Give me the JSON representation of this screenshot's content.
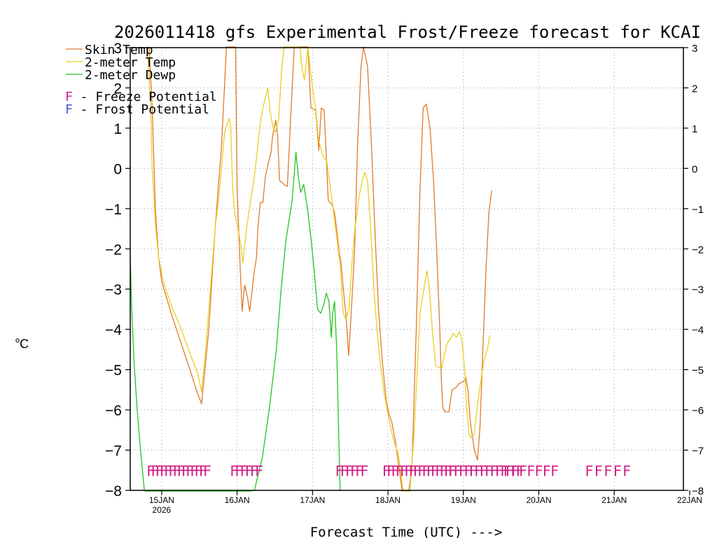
{
  "chart_data": {
    "type": "line",
    "title": "2026011418 gfs Experimental Frost/Freeze forecast for KCAI",
    "xlabel": "Forecast Time (UTC) --->",
    "ylabel": "°C",
    "ylabel_super": "o",
    "ylabel_unit": "C",
    "ylim": [
      -8,
      3
    ],
    "yticks": [
      3,
      2,
      1,
      0,
      -1,
      -2,
      -3,
      -4,
      -5,
      -6,
      -7,
      -8
    ],
    "xlim_hours": [
      -4,
      172
    ],
    "xticks": [
      {
        "label": "15JAN",
        "hour": 6
      },
      {
        "label": "16JAN",
        "hour": 30
      },
      {
        "label": "17JAN",
        "hour": 54
      },
      {
        "label": "18JAN",
        "hour": 78
      },
      {
        "label": "19JAN",
        "hour": 102
      },
      {
        "label": "20JAN",
        "hour": 126
      },
      {
        "label": "21JAN",
        "hour": 150
      },
      {
        "label": "22JAN",
        "hour": 174
      }
    ],
    "x_sublabel": {
      "label": "2026",
      "hour": 6
    },
    "grid": true,
    "legend": {
      "entries": [
        {
          "name": "Skin Temp",
          "color": "#e07a2a"
        },
        {
          "name": "2-meter Temp",
          "color": "#e8d020"
        },
        {
          "name": "2-meter Dewp",
          "color": "#22c41e"
        }
      ],
      "potential": [
        {
          "symbol": "F",
          "text": " - Freeze Potential",
          "color": "#d0208a"
        },
        {
          "symbol": "F",
          "text": " - Frost Potential",
          "color": "#4a52d8"
        }
      ]
    },
    "series": [
      {
        "name": "Skin Temp",
        "color": "#e07a2a",
        "points": [
          [
            2,
            3.2
          ],
          [
            3,
            1.5
          ],
          [
            4,
            -1
          ],
          [
            5,
            -2.2
          ],
          [
            6,
            -2.8
          ],
          [
            9,
            -3.6
          ],
          [
            12,
            -4.3
          ],
          [
            15,
            -5.0
          ],
          [
            17,
            -5.5
          ],
          [
            18.7,
            -5.85
          ],
          [
            21,
            -4.0
          ],
          [
            23,
            -1.5
          ],
          [
            25,
            0.5
          ],
          [
            26.6,
            3.2
          ],
          [
            29.5,
            3.2
          ],
          [
            30,
            -0.5
          ],
          [
            31,
            -2.5
          ],
          [
            31.6,
            -3.55
          ],
          [
            32.4,
            -2.9
          ],
          [
            33.3,
            -3.2
          ],
          [
            34,
            -3.55
          ],
          [
            35.4,
            -2.6
          ],
          [
            36.2,
            -2.2
          ],
          [
            36.6,
            -1.5
          ],
          [
            37.4,
            -0.85
          ],
          [
            38.2,
            -0.85
          ],
          [
            39,
            -0.2
          ],
          [
            40,
            0.15
          ],
          [
            40.8,
            0.4
          ],
          [
            41.3,
            0.8
          ],
          [
            42.3,
            1.2
          ],
          [
            42.9,
            0.8
          ],
          [
            43.5,
            -0.3
          ],
          [
            45,
            -0.4
          ],
          [
            46,
            -0.45
          ],
          [
            47.2,
            1.5
          ],
          [
            48.2,
            3.2
          ],
          [
            52.5,
            3.2
          ],
          [
            53.5,
            1.5
          ],
          [
            55,
            1.45
          ],
          [
            56,
            0.45
          ],
          [
            56.8,
            1.5
          ],
          [
            57.7,
            1.45
          ],
          [
            58.5,
            0.1
          ],
          [
            59,
            -0.8
          ],
          [
            60.2,
            -0.9
          ],
          [
            61,
            -1.1
          ],
          [
            61.8,
            -1.6
          ],
          [
            62.5,
            -2.1
          ],
          [
            63.1,
            -2.35
          ],
          [
            63.8,
            -3.0
          ],
          [
            64.6,
            -3.6
          ],
          [
            65.5,
            -4.65
          ],
          [
            66.3,
            -3.6
          ],
          [
            67.4,
            -2.0
          ],
          [
            68.3,
            0.5
          ],
          [
            69.4,
            2.5
          ],
          [
            70.2,
            3.05
          ],
          [
            71.5,
            2.55
          ],
          [
            72.8,
            0.5
          ],
          [
            74,
            -1.8
          ],
          [
            75,
            -3.5
          ],
          [
            76.2,
            -4.8
          ],
          [
            77.5,
            -5.8
          ],
          [
            78.3,
            -6.1
          ],
          [
            79.2,
            -6.3
          ],
          [
            80.4,
            -6.8
          ],
          [
            81.3,
            -7.3
          ],
          [
            82.5,
            -8.3
          ],
          [
            84.6,
            -8.3
          ],
          [
            85.6,
            -7.5
          ],
          [
            87,
            -4.0
          ],
          [
            88.2,
            -0.5
          ],
          [
            89.2,
            1.5
          ],
          [
            90.2,
            1.6
          ],
          [
            91.4,
            1.0
          ],
          [
            92.5,
            -0.3
          ],
          [
            93.5,
            -2.0
          ],
          [
            94.5,
            -4.0
          ],
          [
            95,
            -5.3
          ],
          [
            95.5,
            -5.95
          ],
          [
            96.2,
            -6.05
          ],
          [
            97.4,
            -6.05
          ],
          [
            98.4,
            -5.5
          ],
          [
            99.6,
            -5.45
          ],
          [
            100.6,
            -5.35
          ],
          [
            102,
            -5.3
          ],
          [
            102.8,
            -5.2
          ],
          [
            103.5,
            -5.55
          ],
          [
            104.2,
            -6.3
          ],
          [
            105.5,
            -7.0
          ],
          [
            106.5,
            -7.25
          ],
          [
            107.3,
            -6.4
          ],
          [
            108.2,
            -4.5
          ],
          [
            109.2,
            -2.5
          ],
          [
            110.1,
            -1.1
          ],
          [
            111,
            -0.55
          ]
        ]
      },
      {
        "name": "2-meter Temp",
        "color": "#e8d020",
        "points": [
          [
            1.5,
            3.2
          ],
          [
            2.5,
            1.5
          ],
          [
            3,
            0
          ],
          [
            4,
            -1.4
          ],
          [
            5,
            -2.2
          ],
          [
            6.5,
            -2.8
          ],
          [
            9,
            -3.4
          ],
          [
            12,
            -3.95
          ],
          [
            15,
            -4.6
          ],
          [
            17.5,
            -5.1
          ],
          [
            18.7,
            -5.55
          ],
          [
            20,
            -4.5
          ],
          [
            21.5,
            -3.0
          ],
          [
            23,
            -1.5
          ],
          [
            24.5,
            -0.5
          ],
          [
            26,
            0.9
          ],
          [
            27.5,
            1.25
          ],
          [
            28,
            1.0
          ],
          [
            28.6,
            -0.5
          ],
          [
            29.2,
            -1.1
          ],
          [
            30.3,
            -1.5
          ],
          [
            31.2,
            -1.9
          ],
          [
            31.8,
            -2.35
          ],
          [
            33,
            -1.5
          ],
          [
            34.3,
            -0.8
          ],
          [
            35.5,
            -0.2
          ],
          [
            36.5,
            0.5
          ],
          [
            37.5,
            1.2
          ],
          [
            38.5,
            1.6
          ],
          [
            39.8,
            2.0
          ],
          [
            40.5,
            1.4
          ],
          [
            41.5,
            1.0
          ],
          [
            42.2,
            0.9
          ],
          [
            43.2,
            1.2
          ],
          [
            44.2,
            2.5
          ],
          [
            45,
            3.2
          ],
          [
            50,
            3.2
          ],
          [
            50.6,
            2.5
          ],
          [
            51.4,
            2.2
          ],
          [
            52.5,
            3.2
          ],
          [
            54,
            2.0
          ],
          [
            55,
            1.5
          ],
          [
            55.8,
            0.8
          ],
          [
            56.6,
            0.5
          ],
          [
            57.6,
            0.25
          ],
          [
            58.5,
            0.2
          ],
          [
            59,
            -0.1
          ],
          [
            60.2,
            -0.8
          ],
          [
            61,
            -1.3
          ],
          [
            62,
            -1.9
          ],
          [
            62.8,
            -2.4
          ],
          [
            63.8,
            -3.6
          ],
          [
            64.6,
            -3.75
          ],
          [
            65.6,
            -3.5
          ],
          [
            66.5,
            -2.4
          ],
          [
            67.5,
            -1.5
          ],
          [
            68.8,
            -0.7
          ],
          [
            69.8,
            -0.3
          ],
          [
            70.6,
            -0.1
          ],
          [
            71.5,
            -0.3
          ],
          [
            72.5,
            -1.5
          ],
          [
            73.5,
            -3.0
          ],
          [
            74.5,
            -4.0
          ],
          [
            75.5,
            -4.8
          ],
          [
            76.8,
            -5.6
          ],
          [
            78,
            -6.1
          ],
          [
            79,
            -6.5
          ],
          [
            80,
            -6.8
          ],
          [
            81.3,
            -7.1
          ],
          [
            82,
            -7.5
          ],
          [
            82.8,
            -8.3
          ],
          [
            85,
            -8.3
          ],
          [
            86.3,
            -6.6
          ],
          [
            87.2,
            -5.2
          ],
          [
            88.2,
            -3.6
          ],
          [
            89.4,
            -3.0
          ],
          [
            90.4,
            -2.55
          ],
          [
            91.2,
            -3.0
          ],
          [
            92.1,
            -4.0
          ],
          [
            93.2,
            -4.9
          ],
          [
            94.3,
            -4.95
          ],
          [
            95.2,
            -4.95
          ],
          [
            95.8,
            -4.7
          ],
          [
            96.8,
            -4.35
          ],
          [
            97.8,
            -4.25
          ],
          [
            98.7,
            -4.1
          ],
          [
            99.8,
            -4.2
          ],
          [
            100.8,
            -4.05
          ],
          [
            101.6,
            -4.3
          ],
          [
            102.4,
            -5.0
          ],
          [
            103.1,
            -6.0
          ],
          [
            103.8,
            -6.6
          ],
          [
            104.5,
            -6.7
          ],
          [
            105.4,
            -6.6
          ],
          [
            106.6,
            -5.8
          ],
          [
            107.7,
            -5.2
          ],
          [
            108.6,
            -4.75
          ],
          [
            109.6,
            -4.5
          ],
          [
            110.5,
            -4.15
          ]
        ]
      },
      {
        "name": "2-meter Dewp",
        "color": "#22c41e",
        "points": [
          [
            -4,
            -2.2
          ],
          [
            -3.5,
            -3.5
          ],
          [
            -2.8,
            -4.8
          ],
          [
            -1.8,
            -6.0
          ],
          [
            -0.5,
            -7.2
          ],
          [
            0.5,
            -8.0
          ],
          [
            0.8,
            -8.3
          ],
          [
            30,
            -8.3
          ],
          [
            34,
            -8.3
          ],
          [
            35.5,
            -8.0
          ],
          [
            38,
            -7.2
          ],
          [
            40.2,
            -6.0
          ],
          [
            42.5,
            -4.5
          ],
          [
            44,
            -3.0
          ],
          [
            45.5,
            -1.8
          ],
          [
            47.5,
            -0.8
          ],
          [
            48.7,
            0.4
          ],
          [
            49.5,
            -0.2
          ],
          [
            50.2,
            -0.6
          ],
          [
            51.2,
            -0.4
          ],
          [
            52.4,
            -1.0
          ],
          [
            53.6,
            -1.8
          ],
          [
            54.6,
            -2.6
          ],
          [
            55.6,
            -3.5
          ],
          [
            56.6,
            -3.6
          ],
          [
            57.5,
            -3.4
          ],
          [
            58.4,
            -3.1
          ],
          [
            59.2,
            -3.3
          ],
          [
            60,
            -4.2
          ],
          [
            60.4,
            -3.6
          ],
          [
            61,
            -3.3
          ],
          [
            61.7,
            -4.5
          ],
          [
            62.3,
            -6.5
          ],
          [
            62.8,
            -8.3
          ]
        ]
      }
    ],
    "potential_markers": {
      "symbol": "F",
      "color": "#d0208a",
      "y": -7.5,
      "runs": [
        {
          "from": 2.5,
          "to": 20.5,
          "count": 14
        },
        {
          "from": 29,
          "to": 37,
          "count": 6
        },
        {
          "from": 62.5,
          "to": 70.5,
          "count": 6
        },
        {
          "from": 77.5,
          "to": 98.5,
          "count": 16
        },
        {
          "from": 98.5,
          "to": 120,
          "count": 14
        },
        {
          "from": 116,
          "to": 131,
          "count": 7
        },
        {
          "from": 142,
          "to": 154,
          "count": 5
        }
      ]
    }
  }
}
